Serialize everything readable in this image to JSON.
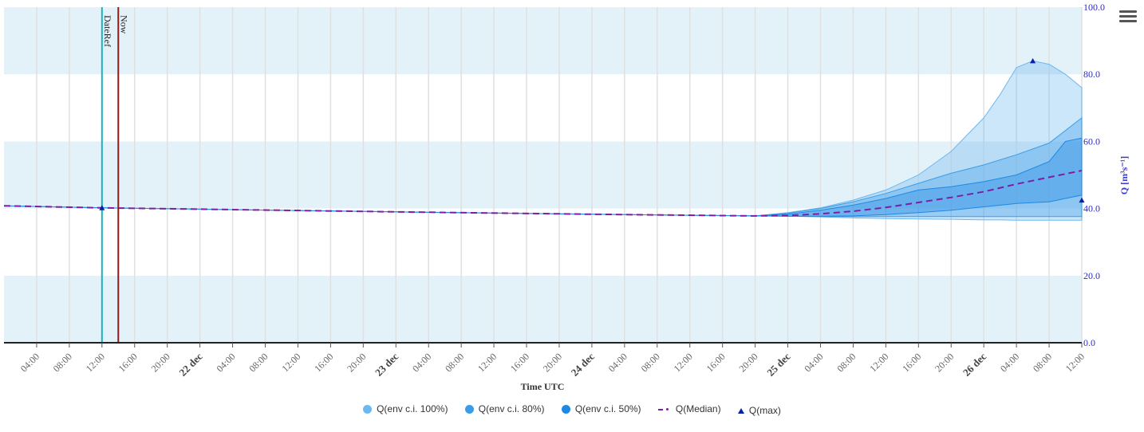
{
  "chart_data": {
    "type": "area",
    "xlabel": "Time UTC",
    "ylabel": "Q [m³s⁻¹]",
    "ylim": [
      0,
      100
    ],
    "y_ticks": [
      "0.0",
      "20.0",
      "40.0",
      "60.0",
      "80.0",
      "100.0"
    ],
    "x_range_hours": [
      0,
      132
    ],
    "x_ticks": [
      {
        "h": 4,
        "label": "04:00",
        "bold": false
      },
      {
        "h": 8,
        "label": "08:00",
        "bold": false
      },
      {
        "h": 12,
        "label": "12:00",
        "bold": false
      },
      {
        "h": 16,
        "label": "16:00",
        "bold": false
      },
      {
        "h": 20,
        "label": "20:00",
        "bold": false
      },
      {
        "h": 24,
        "label": "22 dec",
        "bold": true
      },
      {
        "h": 28,
        "label": "04:00",
        "bold": false
      },
      {
        "h": 32,
        "label": "08:00",
        "bold": false
      },
      {
        "h": 36,
        "label": "12:00",
        "bold": false
      },
      {
        "h": 40,
        "label": "16:00",
        "bold": false
      },
      {
        "h": 44,
        "label": "20:00",
        "bold": false
      },
      {
        "h": 48,
        "label": "23 dec",
        "bold": true
      },
      {
        "h": 52,
        "label": "04:00",
        "bold": false
      },
      {
        "h": 56,
        "label": "08:00",
        "bold": false
      },
      {
        "h": 60,
        "label": "12:00",
        "bold": false
      },
      {
        "h": 64,
        "label": "16:00",
        "bold": false
      },
      {
        "h": 68,
        "label": "20:00",
        "bold": false
      },
      {
        "h": 72,
        "label": "24 dec",
        "bold": true
      },
      {
        "h": 76,
        "label": "04:00",
        "bold": false
      },
      {
        "h": 80,
        "label": "08:00",
        "bold": false
      },
      {
        "h": 84,
        "label": "12:00",
        "bold": false
      },
      {
        "h": 88,
        "label": "16:00",
        "bold": false
      },
      {
        "h": 92,
        "label": "20:00",
        "bold": false
      },
      {
        "h": 96,
        "label": "25 dec",
        "bold": true
      },
      {
        "h": 100,
        "label": "04:00",
        "bold": false
      },
      {
        "h": 104,
        "label": "08:00",
        "bold": false
      },
      {
        "h": 108,
        "label": "12:00",
        "bold": false
      },
      {
        "h": 112,
        "label": "16:00",
        "bold": false
      },
      {
        "h": 116,
        "label": "20:00",
        "bold": false
      },
      {
        "h": 120,
        "label": "26 dec",
        "bold": true
      },
      {
        "h": 124,
        "label": "04:00",
        "bold": false
      },
      {
        "h": 128,
        "label": "08:00",
        "bold": false
      },
      {
        "h": 132,
        "label": "12:00",
        "bold": false
      }
    ],
    "plot_lines": [
      {
        "name": "DateRef",
        "h": 12,
        "color": "#17b3c4"
      },
      {
        "name": "Now",
        "h": 14,
        "color": "#8b1a1a"
      }
    ],
    "bands": [
      {
        "name": "Q(env c.i. 100%)",
        "color": "#6cb8f0",
        "x": [
          0,
          12,
          24,
          48,
          72,
          92,
          96,
          100,
          104,
          108,
          112,
          116,
          120,
          122,
          124,
          126,
          128,
          130,
          132
        ],
        "low": [
          40.8,
          40.2,
          39.8,
          39,
          38.3,
          37.8,
          37.7,
          37.5,
          37.2,
          37.0,
          36.9,
          36.8,
          36.6,
          36.6,
          36.5,
          36.5,
          36.5,
          36.5,
          36.5
        ],
        "high": [
          40.8,
          40.2,
          39.8,
          39,
          38.3,
          37.8,
          38.8,
          40.2,
          42.5,
          45.5,
          50,
          57,
          67,
          74,
          82,
          84,
          83,
          80,
          76
        ]
      },
      {
        "name": "Q(env c.i. 80%)",
        "color": "#3a9ce8",
        "x": [
          0,
          12,
          24,
          48,
          72,
          92,
          96,
          100,
          104,
          108,
          112,
          116,
          120,
          124,
          128,
          132
        ],
        "low": [
          40.8,
          40.2,
          39.8,
          39,
          38.3,
          37.8,
          37.7,
          37.6,
          37.6,
          37.6,
          37.6,
          37.6,
          37.6,
          37.6,
          37.6,
          37.6
        ],
        "high": [
          40.8,
          40.2,
          39.8,
          39,
          38.3,
          37.8,
          38.6,
          40,
          42,
          44.5,
          47.5,
          50.5,
          53,
          56,
          59.5,
          67
        ]
      },
      {
        "name": "Q(env c.i. 50%)",
        "color": "#1e88e5",
        "x": [
          0,
          12,
          24,
          48,
          72,
          92,
          96,
          100,
          104,
          108,
          112,
          116,
          120,
          124,
          128,
          130,
          132
        ],
        "low": [
          40.8,
          40.2,
          39.8,
          39,
          38.3,
          37.8,
          37.7,
          37.7,
          37.8,
          38.2,
          38.8,
          39.5,
          40.5,
          41.5,
          42,
          43,
          44
        ],
        "high": [
          40.8,
          40.2,
          39.8,
          39,
          38.3,
          37.8,
          38.3,
          39.5,
          41,
          43,
          45.5,
          46.5,
          48,
          50,
          54,
          60,
          61
        ]
      }
    ],
    "series": [
      {
        "name": "Q(Median)",
        "color": "#7b1fa2",
        "x": [
          0,
          12,
          24,
          48,
          72,
          92,
          96,
          100,
          104,
          108,
          112,
          116,
          120,
          124,
          128,
          132
        ],
        "values": [
          40.8,
          40.2,
          39.8,
          39,
          38.3,
          37.8,
          37.9,
          38.4,
          39.2,
          40.3,
          41.8,
          43.3,
          45,
          47.3,
          49.3,
          51.3
        ]
      },
      {
        "name": "Q(max)",
        "color": "#0a1fa8",
        "markers": [
          {
            "x": 12,
            "y": 40.2
          },
          {
            "x": 126,
            "y": 84
          },
          {
            "x": 132,
            "y": 42.5
          }
        ]
      }
    ],
    "legend": [
      "Q(env c.i. 100%)",
      "Q(env c.i. 80%)",
      "Q(env c.i. 50%)",
      "Q(Median)",
      "Q(max)"
    ],
    "legend_position": "bottom-center",
    "grid": true
  }
}
